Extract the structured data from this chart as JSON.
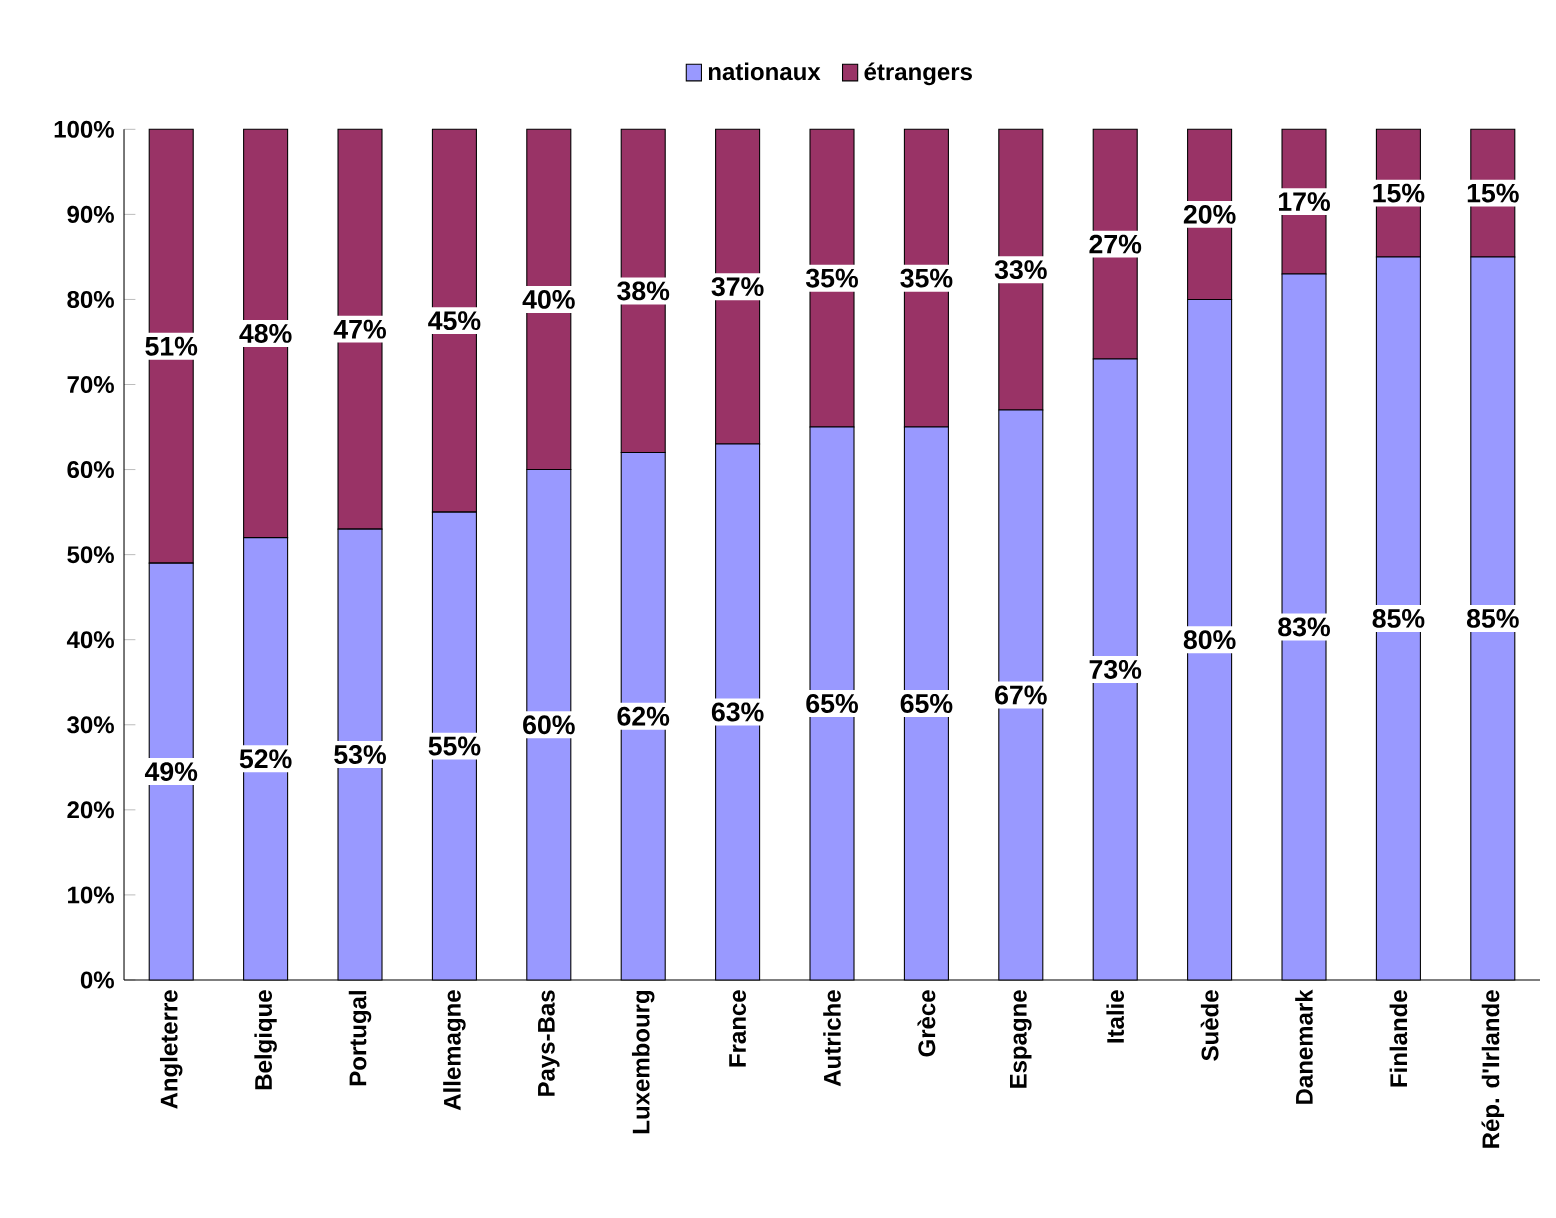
{
  "chart_data": {
    "type": "bar",
    "stacked": true,
    "legend": "top",
    "categories": [
      "Angleterre",
      "Belgique",
      "Portugal",
      "Allemagne",
      "Pays-Bas",
      "Luxembourg",
      "France",
      "Autriche",
      "Grèce",
      "Espagne",
      "Italie",
      "Suède",
      "Danemark",
      "Finlande",
      "Rép. d'Irlande"
    ],
    "series": [
      {
        "name": "nationaux",
        "color": "#9999ff",
        "values": [
          49,
          52,
          53,
          55,
          60,
          62,
          63,
          65,
          65,
          67,
          73,
          80,
          83,
          85,
          85
        ],
        "value_labels": [
          "49%",
          "52%",
          "53%",
          "55%",
          "60%",
          "62%",
          "63%",
          "65%",
          "65%",
          "67%",
          "73%",
          "80%",
          "83%",
          "85%",
          "85%"
        ]
      },
      {
        "name": "étrangers",
        "color": "#993366",
        "values": [
          51,
          48,
          47,
          45,
          40,
          38,
          37,
          35,
          35,
          33,
          27,
          20,
          17,
          15,
          15
        ],
        "value_labels": [
          "51%",
          "48%",
          "47%",
          "45%",
          "40%",
          "38%",
          "37%",
          "35%",
          "35%",
          "33%",
          "27%",
          "20%",
          "17%",
          "15%",
          "15%"
        ]
      }
    ],
    "ylim": [
      0,
      100
    ],
    "yticks": [
      {
        "value": 0,
        "label": "0%"
      },
      {
        "value": 10,
        "label": "10%"
      },
      {
        "value": 20,
        "label": "20%"
      },
      {
        "value": 30,
        "label": "30%"
      },
      {
        "value": 40,
        "label": "40%"
      },
      {
        "value": 50,
        "label": "50%"
      },
      {
        "value": 60,
        "label": "60%"
      },
      {
        "value": 70,
        "label": "70%"
      },
      {
        "value": 80,
        "label": "80%"
      },
      {
        "value": 90,
        "label": "90%"
      },
      {
        "value": 100,
        "label": "100%"
      }
    ]
  }
}
